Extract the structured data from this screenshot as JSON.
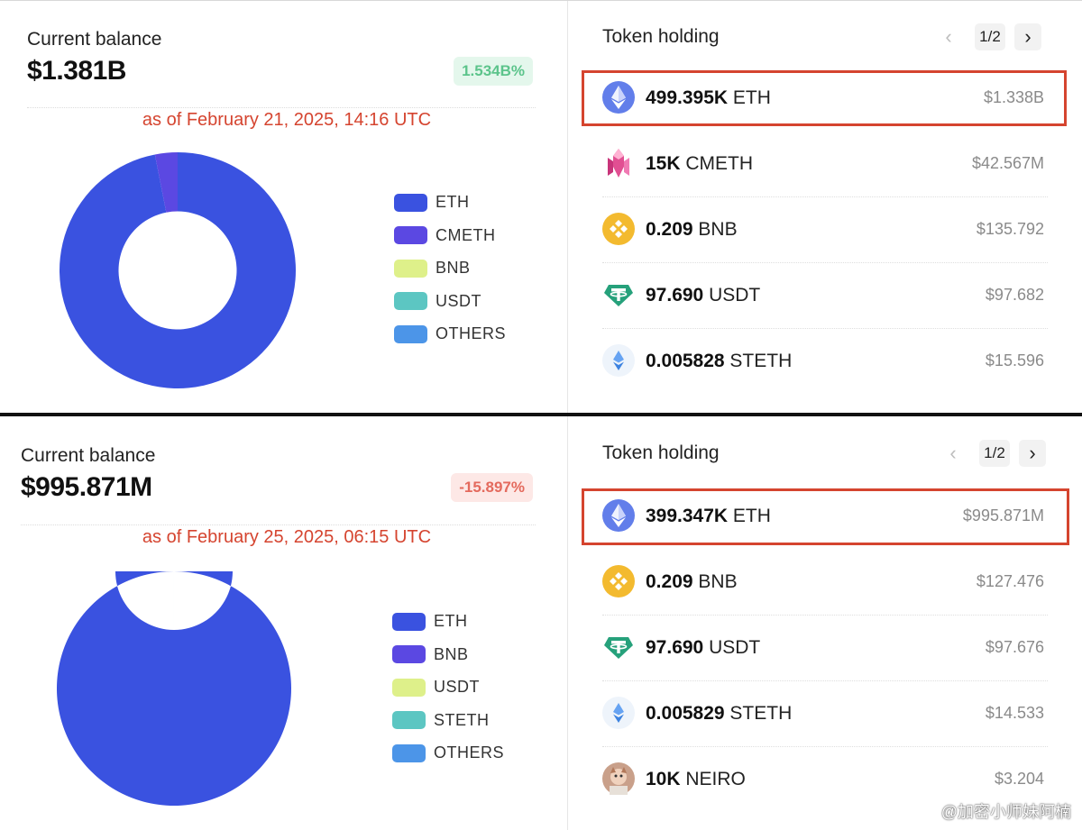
{
  "top": {
    "current_balance_label": "Current balance",
    "balance": "$1.381B",
    "change": "1.534B%",
    "as_of": "as of February 21, 2025, 14:16 UTC",
    "token_holding_title": "Token holding",
    "pagination": "1/2",
    "legend": [
      {
        "label": "ETH",
        "color": "#3a52e0"
      },
      {
        "label": "CMETH",
        "color": "#5b48e2"
      },
      {
        "label": "BNB",
        "color": "#def08a"
      },
      {
        "label": "USDT",
        "color": "#5cc6c2"
      },
      {
        "label": "OTHERS",
        "color": "#4c95e8"
      }
    ],
    "tokens": [
      {
        "amount": "499.395K",
        "symbol": "ETH",
        "value": "$1.338B",
        "icon": "eth-icon"
      },
      {
        "amount": "15K",
        "symbol": "CMETH",
        "value": "$42.567M",
        "icon": "cmeth-icon"
      },
      {
        "amount": "0.209",
        "symbol": "BNB",
        "value": "$135.792",
        "icon": "bnb-icon"
      },
      {
        "amount": "97.690",
        "symbol": "USDT",
        "value": "$97.682",
        "icon": "usdt-icon"
      },
      {
        "amount": "0.005828",
        "symbol": "STETH",
        "value": "$15.596",
        "icon": "steth-icon"
      }
    ]
  },
  "bottom": {
    "current_balance_label": "Current balance",
    "balance": "$995.871M",
    "change": "-15.897%",
    "as_of": "as of February 25, 2025, 06:15 UTC",
    "token_holding_title": "Token holding",
    "pagination": "1/2",
    "legend": [
      {
        "label": "ETH",
        "color": "#3a52e0"
      },
      {
        "label": "BNB",
        "color": "#5b48e2"
      },
      {
        "label": "USDT",
        "color": "#def08a"
      },
      {
        "label": "STETH",
        "color": "#5cc6c2"
      },
      {
        "label": "OTHERS",
        "color": "#4c95e8"
      }
    ],
    "tokens": [
      {
        "amount": "399.347K",
        "symbol": "ETH",
        "value": "$995.871M",
        "icon": "eth-icon"
      },
      {
        "amount": "0.209",
        "symbol": "BNB",
        "value": "$127.476",
        "icon": "bnb-icon"
      },
      {
        "amount": "97.690",
        "symbol": "USDT",
        "value": "$97.676",
        "icon": "usdt-icon"
      },
      {
        "amount": "0.005829",
        "symbol": "STETH",
        "value": "$14.533",
        "icon": "steth-icon"
      },
      {
        "amount": "10K",
        "symbol": "NEIRO",
        "value": "$3.204",
        "icon": "neiro-icon"
      }
    ]
  },
  "chart_data": [
    {
      "type": "pie",
      "categories": [
        "ETH",
        "CMETH",
        "BNB",
        "USDT",
        "OTHERS"
      ],
      "values": [
        1.338,
        0.042567,
        1.35792e-07,
        9.7682e-08,
        1.5596e-08
      ],
      "colors": [
        "#3a52e0",
        "#5b48e2",
        "#def08a",
        "#5cc6c2",
        "#4c95e8"
      ]
    },
    {
      "type": "pie",
      "categories": [
        "ETH",
        "BNB",
        "USDT",
        "STETH",
        "OTHERS"
      ],
      "values": [
        995.871,
        0.000127476,
        9.7676e-05,
        1.4533e-05,
        3.204e-06
      ],
      "colors": [
        "#3a52e0",
        "#5b48e2",
        "#def08a",
        "#5cc6c2",
        "#4c95e8"
      ]
    }
  ],
  "watermark": "@加密小师妹阿楠"
}
